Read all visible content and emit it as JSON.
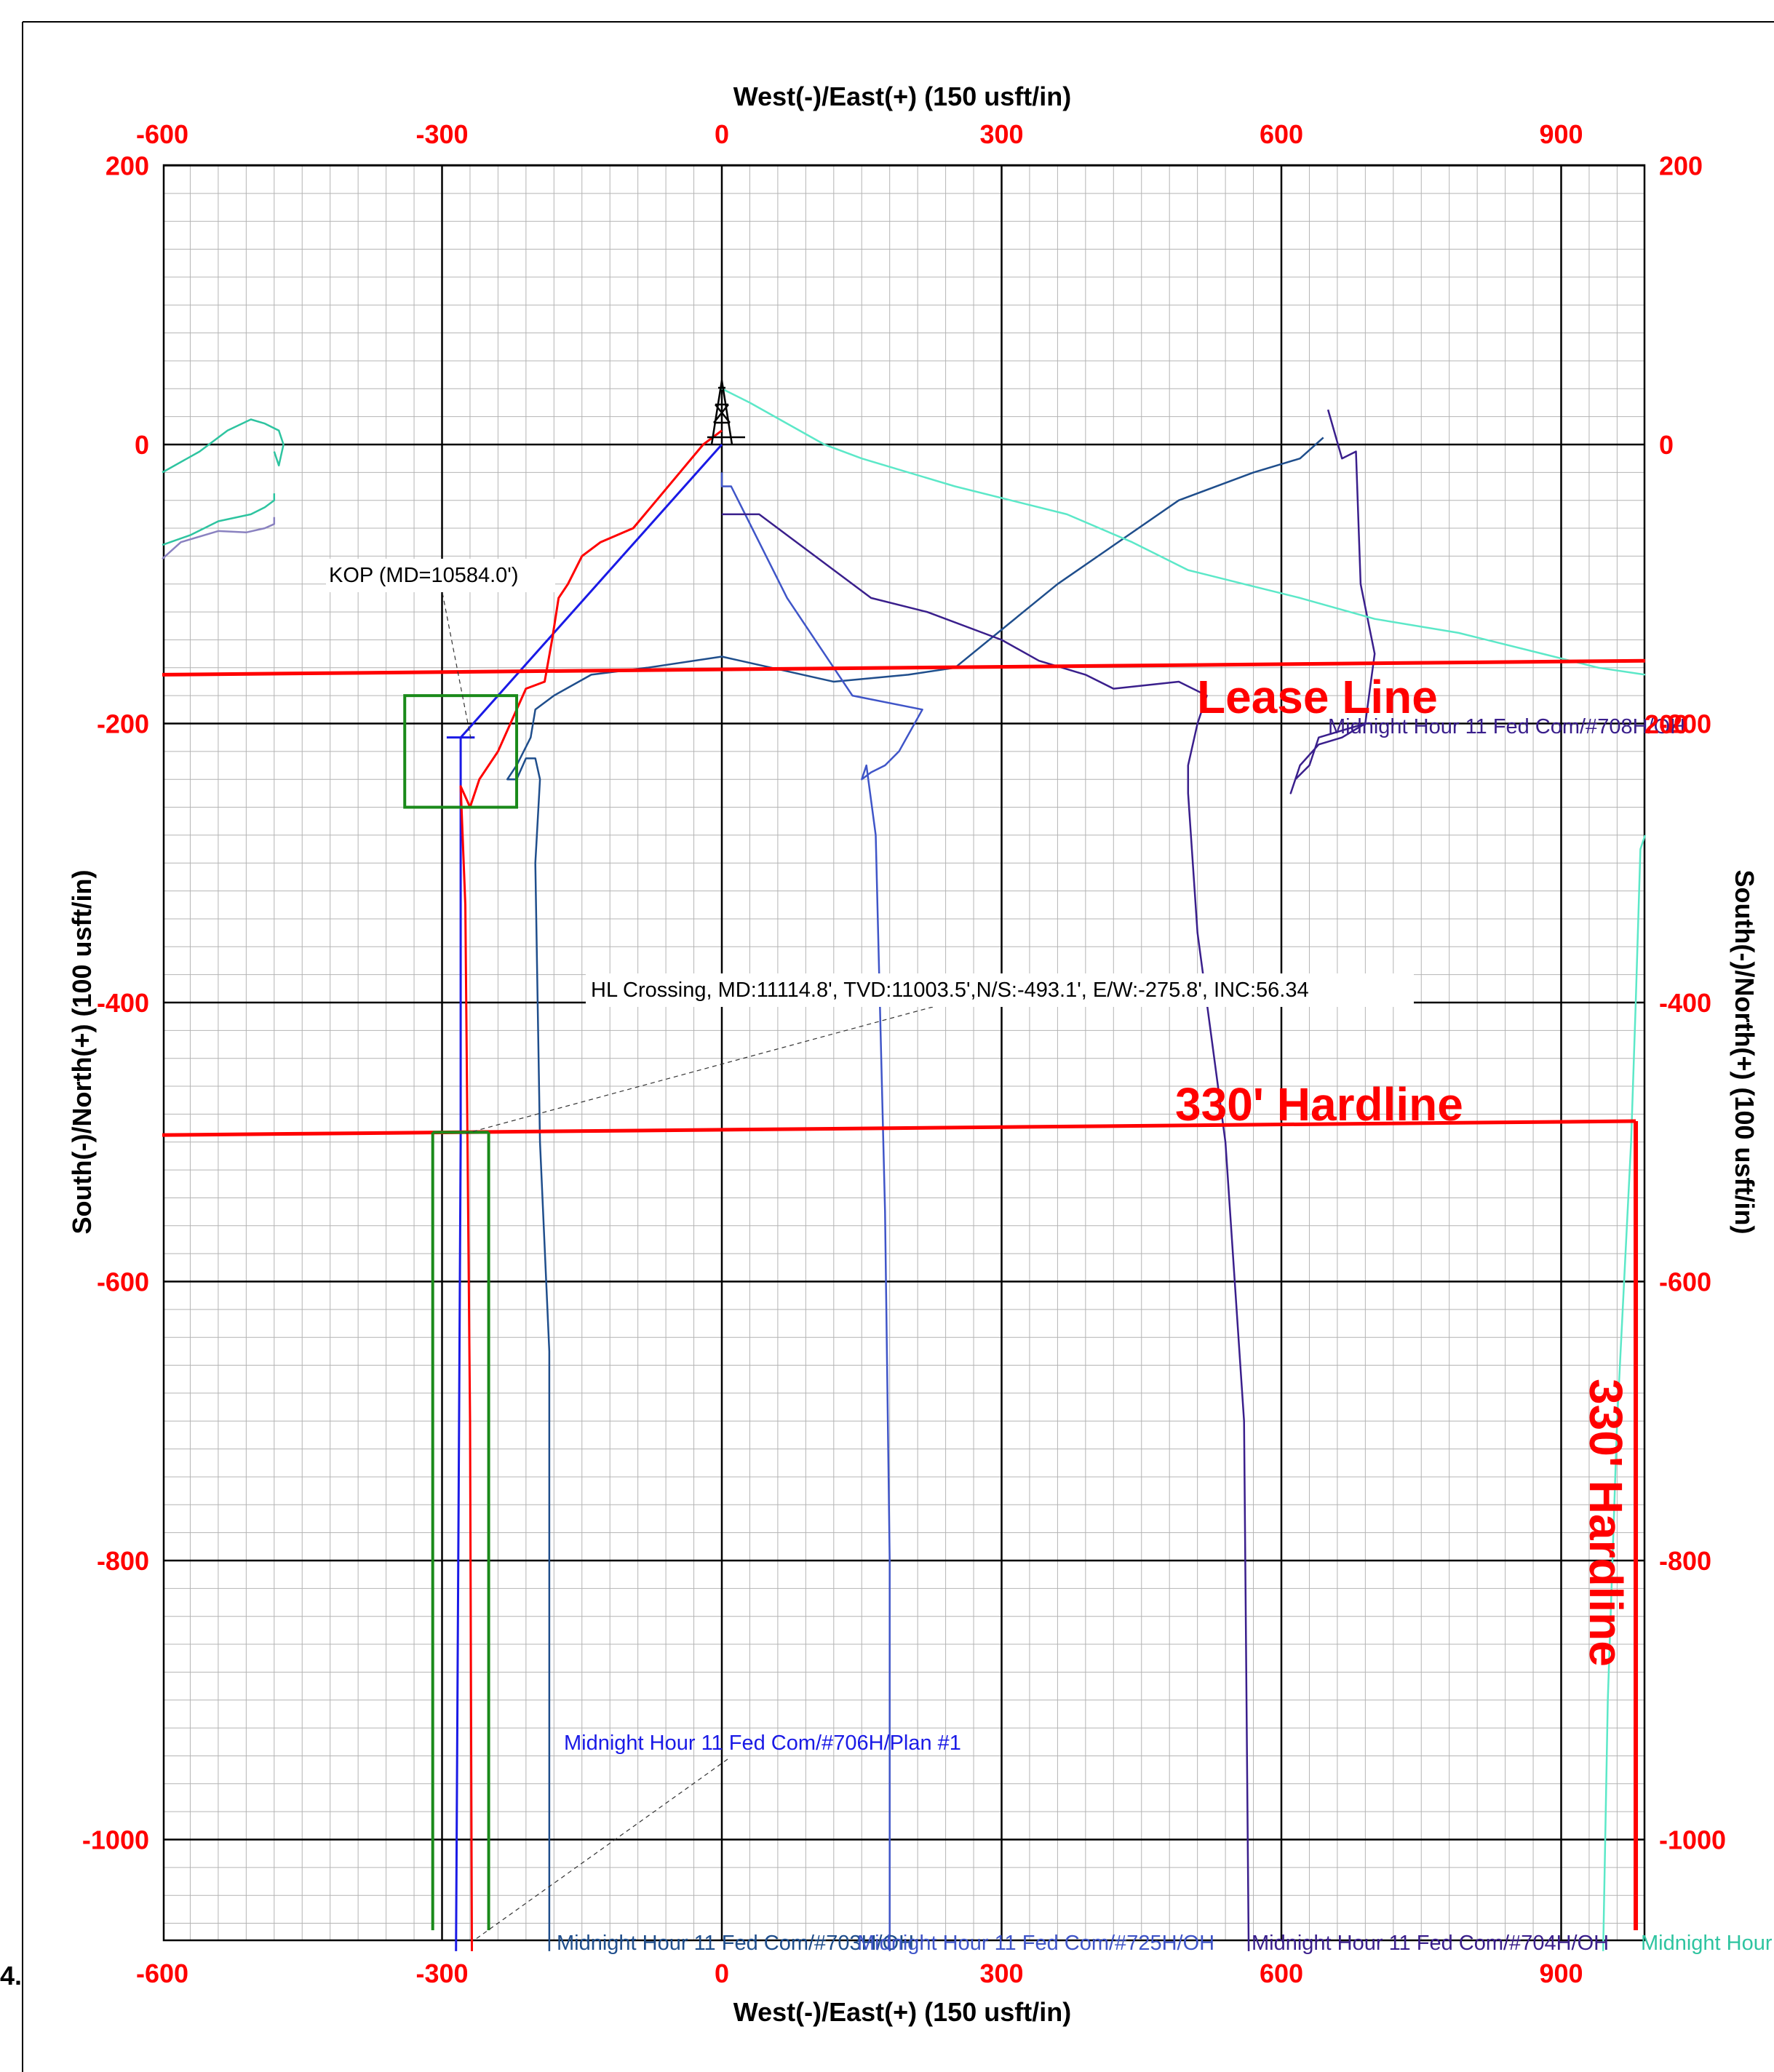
{
  "chart_data": {
    "type": "line",
    "xlabel": "West(-)/East(+) (150 usft/in)",
    "ylabel": "South(-)/North(+) (100 usft/in)",
    "xlim": [
      -600,
      990
    ],
    "ylim": [
      -1065,
      200
    ],
    "x_ticks": [
      "-600",
      "-300",
      "0",
      "300",
      "600",
      "900"
    ],
    "y_ticks": [
      "200",
      "0",
      "-200",
      "-400",
      "-600",
      "-800",
      "-1000"
    ],
    "grid": true,
    "colors": {
      "plan": "#1a1ae6",
      "survey": "#ff0000",
      "hardline": "#ff0000",
      "target": "#1a8a1a",
      "teal": "#2ec4a0",
      "aqua": "#5ce8c8",
      "navy": "#1f4e8c",
      "indigo": "#3a1f8c",
      "slate": "#3f55c8",
      "lavender": "#8a82c0"
    },
    "lease_line": {
      "label": "Lease Line",
      "y": [
        -165,
        -155
      ]
    },
    "hardline_south": {
      "label": "330' Hardline",
      "y": [
        -495,
        -485
      ]
    },
    "hardline_east": {
      "label": "330' Hardline",
      "x": 980
    },
    "annotations": {
      "kop": "KOP  (MD=10584.0')",
      "hl_crossing": "HL Crossing, MD:11114.8', TVD:11003.5',N/S:-493.1', E/W:-275.8', INC:56.34"
    },
    "well_labels": [
      {
        "text": "Midnight Hour 11 Fed Com/#706H/Plan #1",
        "color": "#1a1ae6"
      },
      {
        "text": "Midnight Hour 11 Fed Com/#703H/OH",
        "color": "#1f4e8c"
      },
      {
        "text": "Midnight Hour 11 Fed Com/#725H/OH",
        "color": "#3f55c8"
      },
      {
        "text": "Midnight Hour 11 Fed Com/#704H/OH",
        "color": "#3a1f8c"
      },
      {
        "text": "Midnight Hour",
        "color": "#2ec4a0"
      },
      {
        "text": "Midnight Hour 11 Fed Com/#708H/OH",
        "color": "#3a1f8c"
      },
      {
        "text": "200",
        "color": "#ff0000"
      }
    ],
    "series": [
      {
        "color_key": "plan",
        "points": [
          [
            0,
            0
          ],
          [
            -280,
            -210
          ],
          [
            -280,
            -500
          ],
          [
            -285,
            -1080
          ]
        ]
      },
      {
        "color_key": "survey",
        "points": [
          [
            0,
            10
          ],
          [
            -20,
            0
          ],
          [
            -45,
            -20
          ],
          [
            -70,
            -40
          ],
          [
            -95,
            -60
          ],
          [
            -130,
            -70
          ],
          [
            -150,
            -80
          ],
          [
            -165,
            -100
          ],
          [
            -175,
            -110
          ],
          [
            -182,
            -140
          ],
          [
            -190,
            -170
          ],
          [
            -210,
            -175
          ],
          [
            -240,
            -220
          ],
          [
            -260,
            -240
          ],
          [
            -270,
            -260
          ],
          [
            -280,
            -245
          ],
          [
            -275,
            -330
          ],
          [
            -270,
            -700
          ],
          [
            -268,
            -1080
          ]
        ]
      },
      {
        "color_key": "navy",
        "points": [
          [
            645,
            5
          ],
          [
            620,
            -10
          ],
          [
            570,
            -20
          ],
          [
            490,
            -40
          ],
          [
            360,
            -100
          ],
          [
            250,
            -160
          ],
          [
            200,
            -165
          ],
          [
            120,
            -170
          ],
          [
            0,
            -152
          ],
          [
            -80,
            -160
          ],
          [
            -140,
            -165
          ],
          [
            -180,
            -180
          ],
          [
            -200,
            -190
          ],
          [
            -205,
            -210
          ],
          [
            -220,
            -230
          ],
          [
            -230,
            -240
          ],
          [
            -220,
            -240
          ],
          [
            -210,
            -225
          ],
          [
            -200,
            -225
          ],
          [
            -195,
            -240
          ],
          [
            -200,
            -300
          ],
          [
            -195,
            -500
          ],
          [
            -185,
            -650
          ],
          [
            -185,
            -1080
          ]
        ]
      },
      {
        "color_key": "slate",
        "points": [
          [
            0,
            -20
          ],
          [
            0,
            -30
          ],
          [
            10,
            -30
          ],
          [
            70,
            -110
          ],
          [
            140,
            -180
          ],
          [
            215,
            -190
          ],
          [
            190,
            -220
          ],
          [
            175,
            -230
          ],
          [
            160,
            -235
          ],
          [
            150,
            -240
          ],
          [
            155,
            -230
          ],
          [
            165,
            -280
          ],
          [
            175,
            -550
          ],
          [
            180,
            -800
          ],
          [
            180,
            -1080
          ]
        ]
      },
      {
        "color_key": "indigo",
        "points": [
          [
            0,
            -50
          ],
          [
            40,
            -50
          ],
          [
            100,
            -80
          ],
          [
            160,
            -110
          ],
          [
            220,
            -120
          ],
          [
            300,
            -140
          ],
          [
            340,
            -155
          ],
          [
            390,
            -165
          ],
          [
            420,
            -175
          ],
          [
            490,
            -170
          ],
          [
            520,
            -180
          ],
          [
            510,
            -200
          ],
          [
            500,
            -230
          ],
          [
            500,
            -250
          ],
          [
            510,
            -350
          ],
          [
            540,
            -500
          ],
          [
            560,
            -700
          ],
          [
            565,
            -1080
          ]
        ]
      },
      {
        "color_key": "indigo",
        "points": [
          [
            650,
            25
          ],
          [
            665,
            -10
          ],
          [
            680,
            -5
          ],
          [
            685,
            -100
          ],
          [
            700,
            -150
          ],
          [
            690,
            -200
          ],
          [
            640,
            -210
          ],
          [
            630,
            -230
          ],
          [
            615,
            -240
          ],
          [
            610,
            -250
          ],
          [
            620,
            -230
          ],
          [
            640,
            -215
          ],
          [
            665,
            -210
          ],
          [
            690,
            -200
          ]
        ]
      },
      {
        "color_key": "aqua",
        "points": [
          [
            0,
            40
          ],
          [
            30,
            30
          ],
          [
            110,
            0
          ],
          [
            150,
            -10
          ],
          [
            250,
            -30
          ],
          [
            370,
            -50
          ],
          [
            440,
            -70
          ],
          [
            500,
            -90
          ],
          [
            560,
            -100
          ],
          [
            620,
            -110
          ],
          [
            700,
            -125
          ],
          [
            790,
            -135
          ],
          [
            880,
            -150
          ],
          [
            940,
            -160
          ],
          [
            990,
            -165
          ]
        ]
      },
      {
        "color_key": "aqua",
        "points": [
          [
            990,
            -280
          ],
          [
            985,
            -290
          ],
          [
            980,
            -400
          ],
          [
            975,
            -500
          ],
          [
            960,
            -700
          ],
          [
            950,
            -900
          ],
          [
            945,
            -1080
          ]
        ]
      },
      {
        "color_key": "teal",
        "points": [
          [
            -600,
            -20
          ],
          [
            -560,
            -5
          ],
          [
            -530,
            10
          ],
          [
            -505,
            18
          ],
          [
            -490,
            15
          ],
          [
            -475,
            10
          ],
          [
            -470,
            0
          ],
          [
            -475,
            -15
          ],
          [
            -480,
            -5
          ]
        ]
      },
      {
        "color_key": "teal",
        "points": [
          [
            -600,
            -72
          ],
          [
            -570,
            -65
          ],
          [
            -540,
            -55
          ],
          [
            -505,
            -50
          ],
          [
            -490,
            -45
          ],
          [
            -480,
            -40
          ],
          [
            -480,
            -35
          ]
        ]
      },
      {
        "color_key": "lavender",
        "points": [
          [
            -600,
            -82
          ],
          [
            -580,
            -70
          ],
          [
            -540,
            -62
          ],
          [
            -510,
            -63
          ],
          [
            -490,
            -60
          ],
          [
            -480,
            -57
          ],
          [
            -480,
            -52
          ]
        ]
      }
    ]
  }
}
